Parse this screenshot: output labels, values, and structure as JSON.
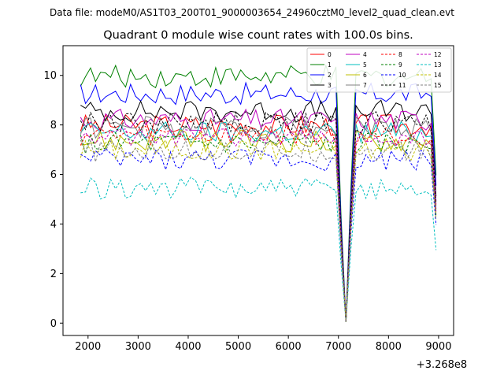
{
  "figure": {
    "suptitle": "Data file: modeM0/AS1T03_200T01_9000003654_24960cztM0_level2_quad_clean.evt"
  },
  "chart_data": {
    "type": "line",
    "title": "Quadrant 0 module wise count rates with 100.0s bins.",
    "xlabel": "",
    "ylabel": "",
    "x_offset_label": "+3.268e8",
    "xlim": [
      1500,
      9300
    ],
    "ylim": [
      -0.5,
      11.2
    ],
    "xticks": [
      2000,
      3000,
      4000,
      5000,
      6000,
      7000,
      8000,
      9000
    ],
    "yticks": [
      0,
      2,
      4,
      6,
      8,
      10
    ],
    "legend_position": "upper-right",
    "grid": false,
    "series": [
      {
        "name": "0",
        "color": "#ff0000",
        "style": "solid",
        "base": 8.0
      },
      {
        "name": "1",
        "color": "#008000",
        "style": "solid",
        "base": 9.95
      },
      {
        "name": "2",
        "color": "#0000ff",
        "style": "solid",
        "base": 9.25
      },
      {
        "name": "3",
        "color": "#000000",
        "style": "solid",
        "base": 8.55
      },
      {
        "name": "4",
        "color": "#bf00bf",
        "style": "solid",
        "base": 8.2
      },
      {
        "name": "5",
        "color": "#00bfbf",
        "style": "solid",
        "base": 7.7
      },
      {
        "name": "6",
        "color": "#bfbf00",
        "style": "solid",
        "base": 7.35
      },
      {
        "name": "7",
        "color": "#808080",
        "style": "solid",
        "base": 7.9
      },
      {
        "name": "8",
        "color": "#ff0000",
        "style": "dashed",
        "base": 7.6
      },
      {
        "name": "9",
        "color": "#008000",
        "style": "dashed",
        "base": 7.25
      },
      {
        "name": "10",
        "color": "#0000ff",
        "style": "dashed",
        "base": 6.6
      },
      {
        "name": "11",
        "color": "#000000",
        "style": "dashed",
        "base": 8.1
      },
      {
        "name": "12",
        "color": "#bf00bf",
        "style": "dashed",
        "base": 7.5
      },
      {
        "name": "13",
        "color": "#00bfbf",
        "style": "dashed",
        "base": 5.45
      },
      {
        "name": "14",
        "color": "#bfbf00",
        "style": "dashed",
        "base": 7.0
      },
      {
        "name": "15",
        "color": "#808080",
        "style": "dashed",
        "base": 6.95
      }
    ]
  }
}
